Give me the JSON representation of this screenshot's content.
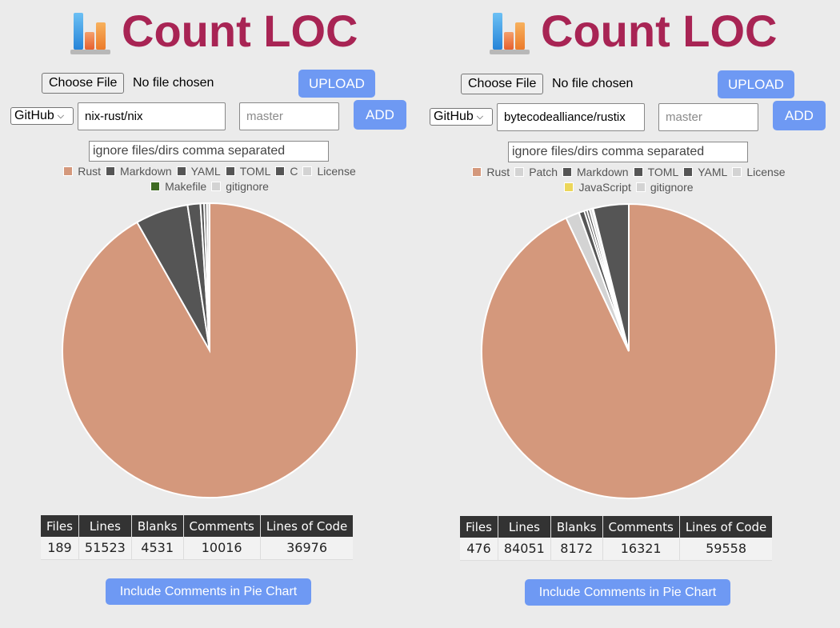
{
  "panels": [
    {
      "title": "Count LOC",
      "choose_file": "Choose File",
      "no_file": "No file chosen",
      "upload": "UPLOAD",
      "source_select": "GitHub",
      "repo": "nix-rust/nix",
      "branch_placeholder": "master",
      "add": "ADD",
      "ignore_placeholder": "ignore files/dirs comma separated",
      "legend_rows": [
        [
          {
            "label": "Rust",
            "color": "#d4987c"
          },
          {
            "label": "Markdown",
            "color": "#555555"
          },
          {
            "label": "YAML",
            "color": "#555555"
          },
          {
            "label": "TOML",
            "color": "#555555"
          },
          {
            "label": "C",
            "color": "#555555"
          },
          {
            "label": "License",
            "color": "#d3d3d3"
          }
        ],
        [
          {
            "label": "Makefile",
            "color": "#3f6b23"
          },
          {
            "label": "gitignore",
            "color": "#d3d3d3"
          }
        ]
      ],
      "chart_data": {
        "type": "pie",
        "slices": [
          {
            "color": "#d4987c",
            "value": 0.918
          },
          {
            "color": "#555555",
            "value": 0.058
          },
          {
            "color": "#555555",
            "value": 0.014
          },
          {
            "color": "#555555",
            "value": 0.004
          },
          {
            "color": "#555555",
            "value": 0.003
          },
          {
            "color": "#d3d3d3",
            "value": 0.003
          }
        ]
      },
      "stats": {
        "headers": [
          "Files",
          "Lines",
          "Blanks",
          "Comments",
          "Lines of Code"
        ],
        "values": [
          "189",
          "51523",
          "4531",
          "10016",
          "36976"
        ]
      },
      "include_button": "Include Comments in Pie Chart"
    },
    {
      "title": "Count LOC",
      "choose_file": "Choose File",
      "no_file": "No file chosen",
      "upload": "UPLOAD",
      "source_select": "GitHub",
      "repo": "bytecodealliance/rustix",
      "branch_placeholder": "master",
      "add": "ADD",
      "ignore_placeholder": "ignore files/dirs comma separated",
      "legend_rows": [
        [
          {
            "label": "Rust",
            "color": "#d4987c"
          },
          {
            "label": "Patch",
            "color": "#d3d3d3"
          },
          {
            "label": "Markdown",
            "color": "#555555"
          },
          {
            "label": "TOML",
            "color": "#555555"
          },
          {
            "label": "YAML",
            "color": "#555555"
          },
          {
            "label": "License",
            "color": "#d3d3d3"
          }
        ],
        [
          {
            "label": "JavaScript",
            "color": "#ecd65a"
          },
          {
            "label": "gitignore",
            "color": "#d3d3d3"
          }
        ]
      ],
      "chart_data": {
        "type": "pie",
        "slices": [
          {
            "color": "#d4987c",
            "value": 0.93
          },
          {
            "color": "#d3d3d3",
            "value": 0.015
          },
          {
            "color": "#555555",
            "value": 0.006
          },
          {
            "color": "#555555",
            "value": 0.003
          },
          {
            "color": "#555555",
            "value": 0.003
          },
          {
            "color": "#d3d3d3",
            "value": 0.003
          },
          {
            "color": "#ecd65a",
            "value": 0.001
          },
          {
            "color": "#555555",
            "value": 0.039
          }
        ]
      },
      "stats": {
        "headers": [
          "Files",
          "Lines",
          "Blanks",
          "Comments",
          "Lines of Code"
        ],
        "values": [
          "476",
          "84051",
          "8172",
          "16321",
          "59558"
        ]
      },
      "include_button": "Include Comments in Pie Chart"
    }
  ]
}
